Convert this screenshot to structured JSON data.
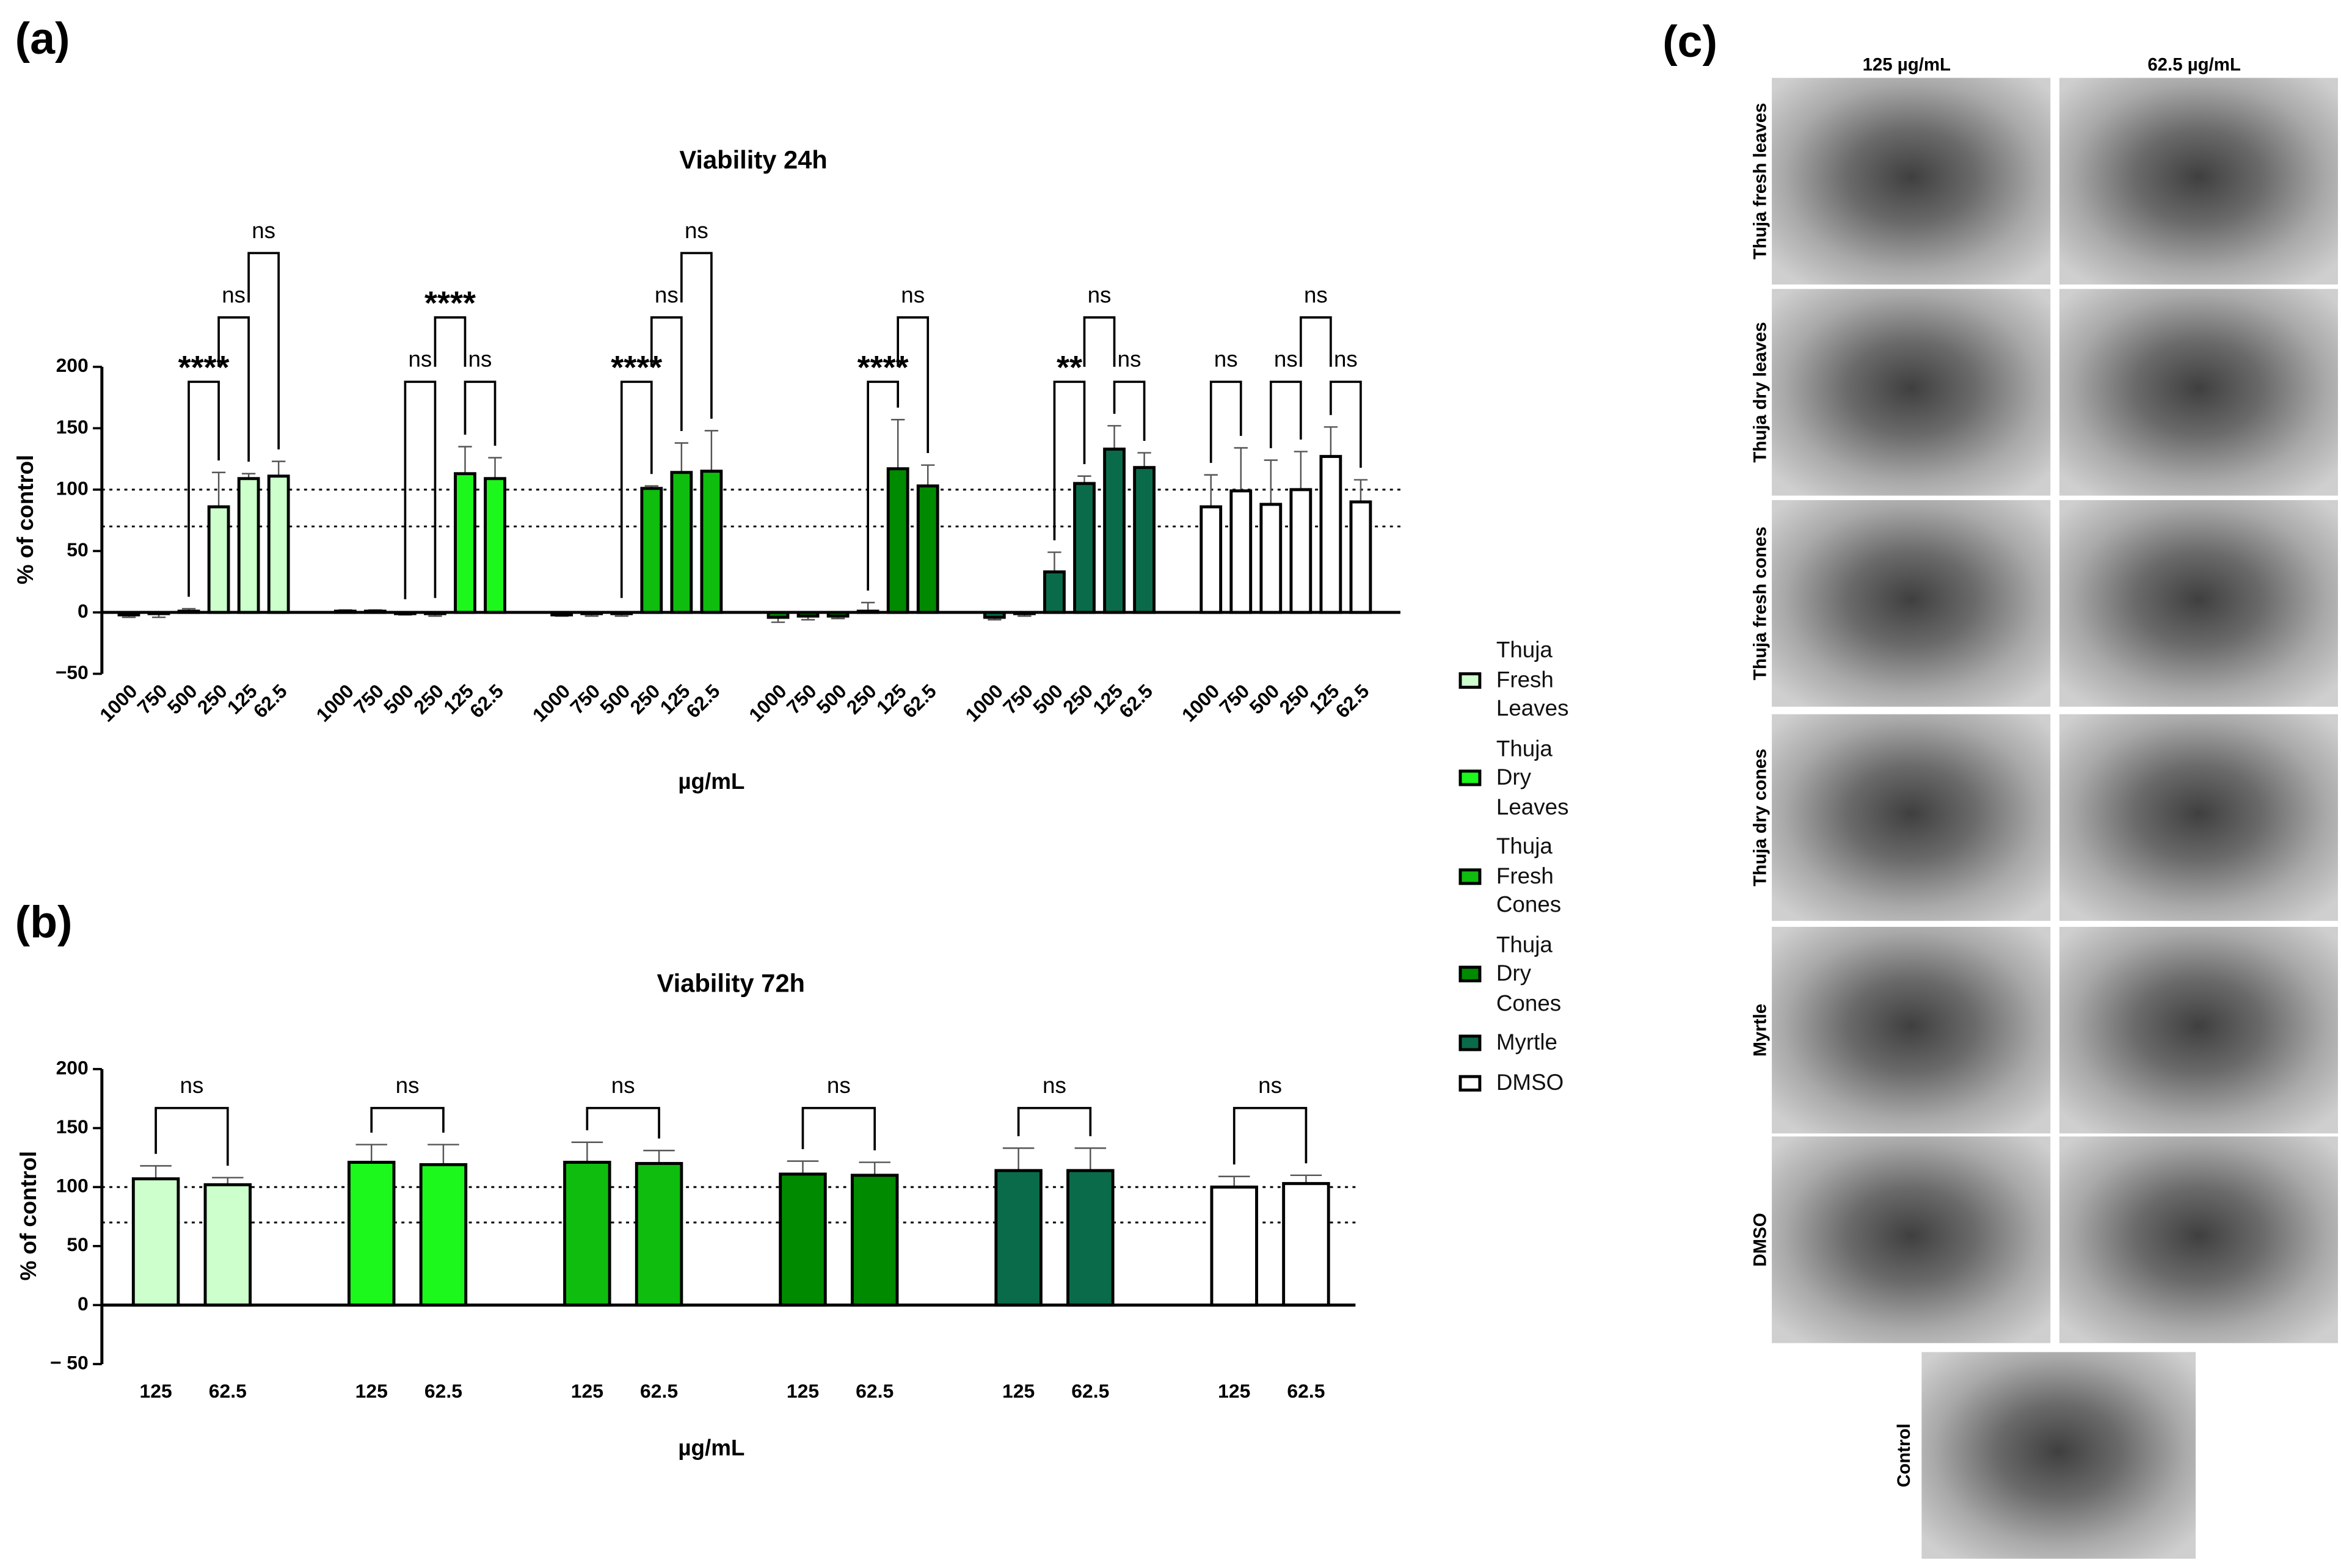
{
  "panel_labels": [
    "(a)",
    "(b)",
    "(c)"
  ],
  "chart_data": [
    {
      "type": "bar",
      "title": "Viability 24h",
      "y_label": "% of control",
      "x_label": "µg/mL",
      "categories": [
        "1000",
        "750",
        "500",
        "250",
        "125",
        "62.5"
      ],
      "ylim": [
        -50,
        200
      ],
      "yticks": [
        200,
        150,
        100,
        50,
        0,
        {
          "value": -50,
          "label": "−50"
        }
      ],
      "reference_lines": [
        100,
        70
      ],
      "series": [
        {
          "name": "Thuja Fresh Leaves",
          "color": "#ccffcc",
          "values": [
            -2,
            -1,
            1,
            86,
            109,
            111
          ],
          "errors": [
            2,
            3,
            2,
            28,
            4,
            12
          ]
        },
        {
          "name": "Thuja Dry Leaves",
          "color": "#1cf71c",
          "values": [
            1,
            1,
            -1,
            -1,
            113,
            109
          ],
          "errors": [
            1,
            1,
            1,
            2,
            22,
            17
          ]
        },
        {
          "name": "Thuja Fresh Cones",
          "color": "#0fbd0f",
          "values": [
            -2,
            -1,
            -1,
            101,
            114,
            115
          ],
          "errors": [
            1,
            2,
            2,
            2,
            24,
            33
          ]
        },
        {
          "name": "Thuja Dry Cones",
          "color": "#008a00",
          "values": [
            -4,
            -3,
            -3,
            1,
            117,
            103
          ],
          "errors": [
            4,
            3,
            2,
            7,
            40,
            17
          ]
        },
        {
          "name": "Myrtle",
          "color": "#0a6b4a",
          "values": [
            -4,
            -1,
            33,
            105,
            133,
            118
          ],
          "errors": [
            2,
            2,
            16,
            6,
            19,
            12
          ]
        },
        {
          "name": "DMSO",
          "color": "#ffffff",
          "values": [
            86,
            99,
            88,
            100,
            127,
            90
          ],
          "errors": [
            26,
            35,
            36,
            31,
            24,
            18
          ]
        }
      ],
      "annotations": [
        {
          "series": 0,
          "categories": [
            2,
            3
          ],
          "label": "****"
        },
        {
          "series": 0,
          "categories": [
            3,
            4
          ],
          "label": "ns"
        },
        {
          "series": 0,
          "categories": [
            4,
            5
          ],
          "label": "ns"
        },
        {
          "series": 1,
          "categories": [
            2,
            3
          ],
          "label": "ns"
        },
        {
          "series": 1,
          "categories": [
            4,
            5
          ],
          "label": "ns"
        },
        {
          "series": 1,
          "categories": [
            3,
            4
          ],
          "label": "****"
        },
        {
          "series": 2,
          "categories": [
            2,
            3
          ],
          "label": "****"
        },
        {
          "series": 2,
          "categories": [
            3,
            4
          ],
          "label": "ns"
        },
        {
          "series": 2,
          "categories": [
            4,
            5
          ],
          "label": "ns"
        },
        {
          "series": 3,
          "categories": [
            3,
            4
          ],
          "label": "****"
        },
        {
          "series": 3,
          "categories": [
            4,
            5
          ],
          "label": "ns"
        },
        {
          "series": 4,
          "categories": [
            2,
            3
          ],
          "label": "**"
        },
        {
          "series": 4,
          "categories": [
            4,
            5
          ],
          "label": "ns"
        },
        {
          "series": 4,
          "categories": [
            3,
            4
          ],
          "label": "ns"
        },
        {
          "series": 5,
          "categories": [
            0,
            1
          ],
          "label": "ns"
        },
        {
          "series": 5,
          "categories": [
            2,
            3
          ],
          "label": "ns"
        },
        {
          "series": 5,
          "categories": [
            4,
            5
          ],
          "label": "ns"
        },
        {
          "series": 5,
          "categories": [
            3,
            4
          ],
          "label": "ns"
        }
      ]
    },
    {
      "type": "bar",
      "title": "Viability 72h",
      "y_label": "% of control",
      "x_label": "µg/mL",
      "categories": [
        "125",
        "62.5"
      ],
      "ylim": [
        -50,
        200
      ],
      "yticks": [
        200,
        150,
        100,
        50,
        0,
        {
          "value": -50,
          "label": "− 50"
        }
      ],
      "reference_lines": [
        100,
        70
      ],
      "series": [
        {
          "color": "#ccffcc",
          "values": [
            107,
            102
          ],
          "errors": [
            11,
            6
          ]
        },
        {
          "color": "#1cf71c",
          "values": [
            121,
            119
          ],
          "errors": [
            15,
            17
          ]
        },
        {
          "color": "#0fbd0f",
          "values": [
            121,
            120
          ],
          "errors": [
            17,
            11
          ]
        },
        {
          "color": "#008a00",
          "values": [
            111,
            110
          ],
          "errors": [
            11,
            11
          ]
        },
        {
          "color": "#0a6b4a",
          "values": [
            114,
            114
          ],
          "errors": [
            19,
            19
          ]
        },
        {
          "color": "#ffffff",
          "values": [
            100,
            103
          ],
          "errors": [
            9,
            7
          ]
        }
      ],
      "annotations": [
        {
          "series": 0,
          "categories": [
            0,
            1
          ],
          "label": "ns"
        },
        {
          "series": 1,
          "categories": [
            0,
            1
          ],
          "label": "ns"
        },
        {
          "series": 2,
          "categories": [
            0,
            1
          ],
          "label": "ns"
        },
        {
          "series": 3,
          "categories": [
            0,
            1
          ],
          "label": "ns"
        },
        {
          "series": 4,
          "categories": [
            0,
            1
          ],
          "label": "ns"
        },
        {
          "series": 5,
          "categories": [
            0,
            1
          ],
          "label": "ns"
        }
      ]
    }
  ],
  "micrographs": {
    "column_labels": [
      "125 µg/mL",
      "62.5 µg/mL"
    ],
    "row_labels": [
      "Thuja fresh leaves",
      "Thuja dry leaves",
      "Thuja fresh cones",
      "Thuja dry cones",
      "Myrtle",
      "DMSO"
    ],
    "control_label": "Control"
  }
}
